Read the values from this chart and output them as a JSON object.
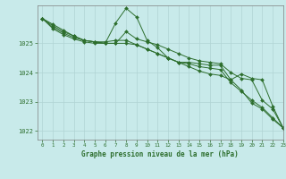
{
  "background_color": "#c8eaea",
  "grid_color": "#b0d4d4",
  "line_color": "#2d6e2d",
  "title": "Graphe pression niveau de la mer (hPa)",
  "xlim": [
    -0.5,
    23
  ],
  "ylim": [
    1021.7,
    1026.3
  ],
  "yticks": [
    1022,
    1023,
    1024,
    1025
  ],
  "xticks": [
    0,
    1,
    2,
    3,
    4,
    5,
    6,
    7,
    8,
    9,
    10,
    11,
    12,
    13,
    14,
    15,
    16,
    17,
    18,
    19,
    20,
    21,
    22,
    23
  ],
  "series": [
    [
      1025.85,
      1025.65,
      1025.45,
      1025.25,
      1025.1,
      1025.05,
      1025.0,
      1025.0,
      1025.4,
      1025.15,
      1025.05,
      1024.95,
      1024.8,
      1024.65,
      1024.5,
      1024.4,
      1024.35,
      1024.3,
      1024.0,
      1023.8,
      1023.75,
      1023.05,
      1022.75,
      1022.1
    ],
    [
      1025.85,
      1025.5,
      1025.3,
      1025.15,
      1025.05,
      1025.0,
      1025.0,
      1025.7,
      1026.2,
      1025.9,
      1025.1,
      1024.85,
      1024.5,
      1024.35,
      1024.2,
      1024.05,
      1023.95,
      1023.9,
      1023.75,
      1023.95,
      1023.8,
      1023.75,
      1022.85,
      1022.1
    ],
    [
      1025.85,
      1025.55,
      1025.35,
      1025.2,
      1025.1,
      1025.05,
      1025.05,
      1025.1,
      1025.1,
      1024.95,
      1024.8,
      1024.65,
      1024.5,
      1024.35,
      1024.35,
      1024.3,
      1024.25,
      1024.25,
      1023.75,
      1023.4,
      1022.95,
      1022.75,
      1022.4,
      1022.1
    ],
    [
      1025.85,
      1025.6,
      1025.4,
      1025.25,
      1025.1,
      1025.05,
      1025.0,
      1025.0,
      1025.0,
      1024.95,
      1024.8,
      1024.65,
      1024.5,
      1024.35,
      1024.3,
      1024.2,
      1024.15,
      1024.1,
      1023.65,
      1023.35,
      1023.05,
      1022.8,
      1022.45,
      1022.1
    ]
  ]
}
